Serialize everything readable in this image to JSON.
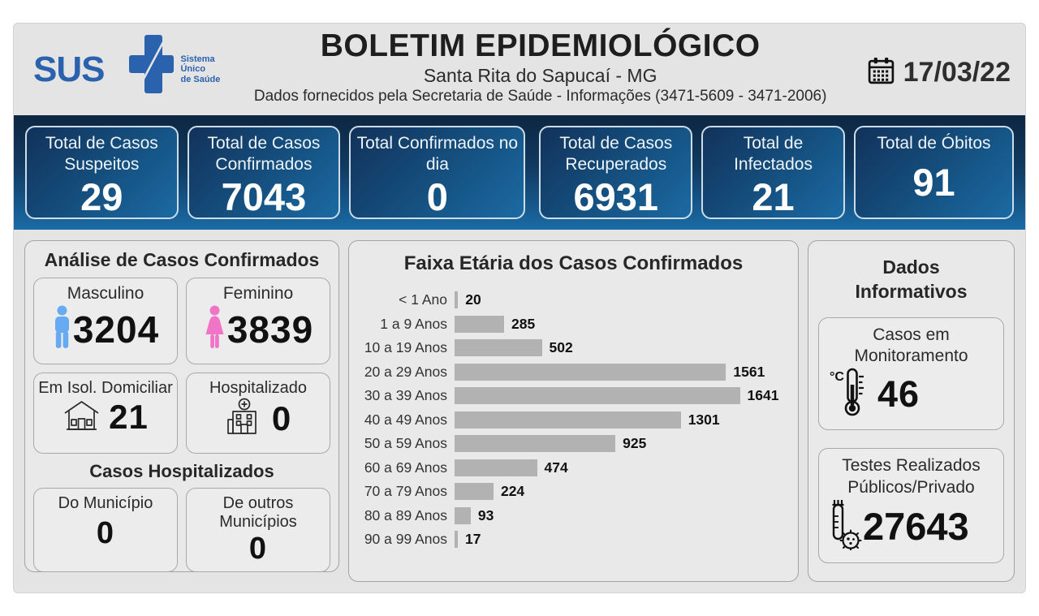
{
  "header": {
    "logo_text": "SUS",
    "logo_subtext": "Sistema\nÚnico\nde Saúde",
    "title": "BOLETIM EPIDEMIOLÓGICO",
    "subtitle": "Santa Rita do Sapucaí - MG",
    "info": "Dados fornecidos pela Secretaria de Saúde - Informações (3471-5609 - 3471-2006)",
    "date": "17/03/22"
  },
  "stats": [
    {
      "label": "Total de Casos Suspeitos",
      "value": "29"
    },
    {
      "label": "Total de Casos Confirmados",
      "value": "7043"
    },
    {
      "label": "Total Confirmados no dia",
      "value": "0"
    },
    {
      "label": "Total de Casos Recuperados",
      "value": "6931"
    },
    {
      "label": "Total de Infectados",
      "value": "21"
    },
    {
      "label": "Total de Óbitos",
      "value": "91"
    }
  ],
  "analysis": {
    "title": "Análise de Casos Confirmados",
    "male": {
      "label": "Masculino",
      "value": "3204"
    },
    "female": {
      "label": "Feminino",
      "value": "3839"
    },
    "isolation": {
      "label": "Em Isol. Domiciliar",
      "value": "21"
    },
    "hospitalized": {
      "label": "Hospitalizado",
      "value": "0"
    },
    "hospital_section_title": "Casos Hospitalizados",
    "municipality": {
      "label": "Do Município",
      "value": "0"
    },
    "other_municipalities": {
      "label": "De outros Municípios",
      "value": "0"
    }
  },
  "chart_data": {
    "type": "bar",
    "orientation": "horizontal",
    "title": "Faixa Etária dos Casos Confirmados",
    "categories": [
      "< 1 Ano",
      "1 a 9 Anos",
      "10 a 19 Anos",
      "20 a 29 Anos",
      "30 a 39 Anos",
      "40 a 49 Anos",
      "50 a 59 Anos",
      "60 a 69 Anos",
      "70 a 79 Anos",
      "80 a 89 Anos",
      "90 a 99 Anos"
    ],
    "values": [
      20,
      285,
      502,
      1561,
      1641,
      1301,
      925,
      474,
      224,
      93,
      17
    ],
    "xlabel": "",
    "ylabel": "",
    "xlim": [
      0,
      1900
    ],
    "grid": false,
    "legend": false,
    "bar_color": "#b2b2b2",
    "data_labels": true
  },
  "informative": {
    "title": "Dados Informativos",
    "monitoring": {
      "label": "Casos em Monitoramento",
      "value": "46"
    },
    "tests": {
      "label": "Testes Realizados Públicos/Privado",
      "value": "27643"
    }
  },
  "icons": {
    "logo": "sus-cross-icon",
    "date": "calendar-icon",
    "male": "male-person-icon",
    "female": "female-person-icon",
    "isolation": "house-icon",
    "hospitalized": "hospital-icon",
    "monitoring": "thermometer-icon",
    "tests": "testtube-virus-icon"
  },
  "colors": {
    "sus_blue": "#2a62ad",
    "bar_navy_top": "#0d2642",
    "bar_blue_bottom": "#1a6ba6",
    "stat_card_border": "#ccdce9",
    "panel_bg": "#e9e9e9",
    "dashboard_bg": "#e4e4e4",
    "chart_bar": "#b2b2b2",
    "male_icon": "#66abf2",
    "female_icon": "#f175c7",
    "text_dark": "#1e1e1e"
  }
}
